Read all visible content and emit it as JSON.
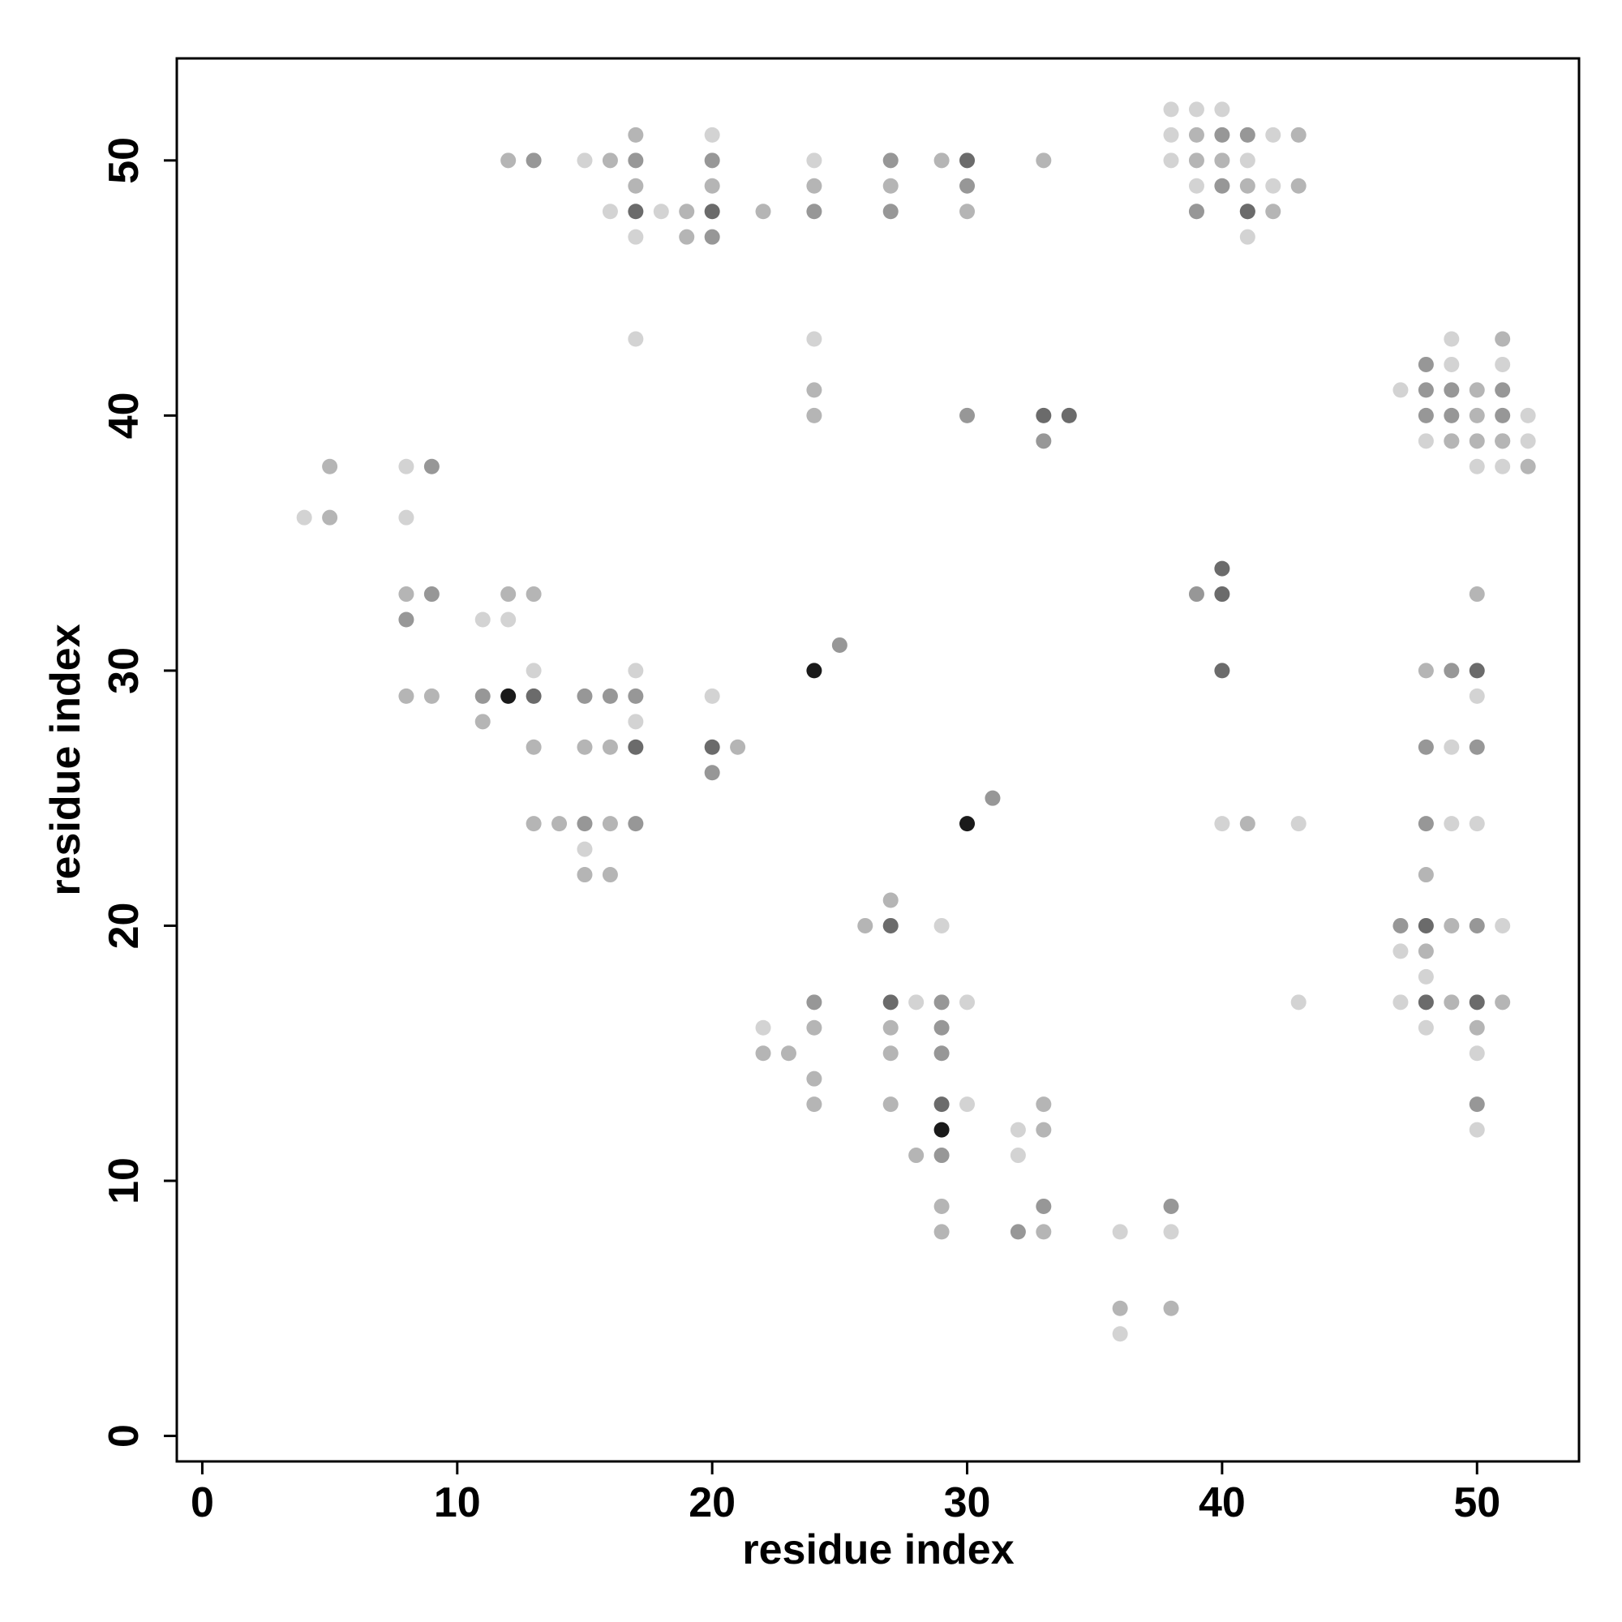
{
  "chart_data": {
    "type": "scatter",
    "xlabel": "residue index",
    "ylabel": "residue index",
    "xlim": [
      -1,
      54
    ],
    "ylim": [
      -1,
      54
    ],
    "xticks": [
      0,
      10,
      20,
      30,
      40,
      50
    ],
    "yticks": [
      0,
      10,
      20,
      30,
      40,
      50
    ],
    "series": [
      {
        "color": "#d3d3d3",
        "x": [
          38,
          39,
          40,
          20,
          38,
          42,
          15,
          24,
          38,
          41,
          39,
          42,
          16,
          18,
          39,
          17,
          41,
          17,
          24,
          49,
          49,
          51,
          47,
          52,
          48,
          49,
          52,
          8,
          50,
          51,
          4,
          8,
          11,
          12,
          13,
          17,
          20,
          50,
          17,
          49,
          15,
          40,
          43,
          49,
          50,
          29,
          51,
          47,
          48,
          28,
          30,
          43,
          47,
          22,
          48,
          50,
          30,
          32,
          50,
          32,
          36,
          38,
          36
        ],
        "values": [
          52,
          52,
          52,
          51,
          51,
          51,
          50,
          50,
          50,
          50,
          49,
          49,
          48,
          48,
          48,
          47,
          47,
          43,
          43,
          43,
          42,
          42,
          41,
          40,
          39,
          39,
          39,
          38,
          38,
          38,
          36,
          36,
          32,
          32,
          30,
          30,
          29,
          29,
          28,
          27,
          23,
          24,
          24,
          24,
          24,
          20,
          20,
          19,
          18,
          17,
          17,
          17,
          17,
          16,
          16,
          15,
          13,
          12,
          12,
          11,
          8,
          8,
          4
        ]
      },
      {
        "color": "#b5b5b5",
        "x": [
          17,
          39,
          43,
          12,
          16,
          29,
          33,
          39,
          40,
          17,
          20,
          24,
          27,
          41,
          43,
          19,
          22,
          30,
          42,
          19,
          51,
          24,
          50,
          24,
          50,
          51,
          49,
          50,
          51,
          5,
          52,
          5,
          8,
          12,
          13,
          50,
          48,
          8,
          9,
          11,
          13,
          15,
          16,
          21,
          13,
          14,
          16,
          41,
          15,
          16,
          48,
          27,
          26,
          49,
          48,
          49,
          51,
          24,
          27,
          50,
          22,
          23,
          27,
          24,
          24,
          27,
          33,
          33,
          28,
          29,
          29,
          33,
          36,
          38
        ],
        "values": [
          51,
          51,
          51,
          50,
          50,
          50,
          50,
          50,
          50,
          49,
          49,
          49,
          49,
          49,
          49,
          48,
          48,
          48,
          48,
          47,
          43,
          41,
          41,
          40,
          40,
          39,
          39,
          39,
          39,
          38,
          38,
          36,
          33,
          33,
          33,
          33,
          30,
          29,
          29,
          28,
          27,
          27,
          27,
          27,
          24,
          24,
          24,
          24,
          22,
          22,
          22,
          21,
          20,
          20,
          19,
          17,
          17,
          16,
          16,
          16,
          15,
          15,
          15,
          14,
          13,
          13,
          13,
          12,
          11,
          9,
          8,
          8,
          5,
          5
        ]
      },
      {
        "color": "#979797",
        "x": [
          40,
          41,
          13,
          17,
          20,
          27,
          30,
          40,
          41,
          24,
          27,
          39,
          20,
          48,
          48,
          49,
          51,
          30,
          48,
          49,
          51,
          33,
          9,
          9,
          39,
          8,
          25,
          49,
          11,
          15,
          16,
          17,
          48,
          50,
          20,
          31,
          15,
          17,
          48,
          47,
          50,
          24,
          29,
          29,
          29,
          50,
          29,
          33,
          38,
          32
        ],
        "values": [
          51,
          51,
          50,
          50,
          50,
          50,
          49,
          49,
          48,
          48,
          48,
          48,
          47,
          42,
          41,
          41,
          41,
          40,
          40,
          40,
          40,
          39,
          38,
          33,
          33,
          32,
          31,
          30,
          29,
          29,
          29,
          29,
          27,
          27,
          26,
          25,
          24,
          24,
          24,
          20,
          20,
          17,
          17,
          16,
          15,
          13,
          11,
          9,
          9,
          8
        ]
      },
      {
        "color": "#6b6b6b",
        "x": [
          30,
          17,
          20,
          41,
          33,
          34,
          40,
          40,
          40,
          50,
          13,
          17,
          20,
          27,
          48,
          27,
          48,
          50,
          29
        ],
        "values": [
          50,
          48,
          48,
          48,
          40,
          40,
          34,
          33,
          30,
          30,
          29,
          27,
          27,
          20,
          20,
          17,
          17,
          17,
          13
        ]
      },
      {
        "color": "#1a1a1a",
        "x": [
          24,
          12,
          30,
          29
        ],
        "values": [
          30,
          29,
          24,
          12
        ]
      }
    ]
  }
}
